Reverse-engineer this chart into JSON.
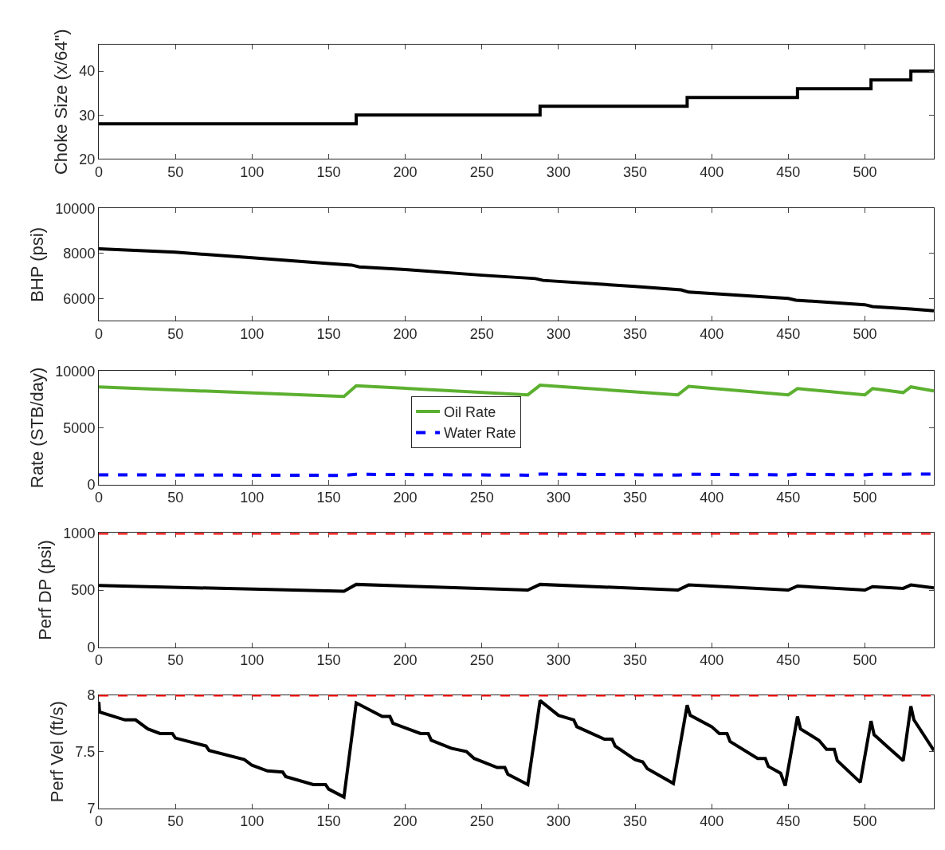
{
  "chart_data": [
    {
      "type": "step",
      "ylabel": "Choke Size (x/64\")",
      "xlim": [
        0,
        545
      ],
      "xticks": [
        0,
        50,
        100,
        150,
        200,
        250,
        300,
        350,
        400,
        450,
        500
      ],
      "ylim": [
        20,
        46
      ],
      "yticks": [
        20,
        30,
        40
      ],
      "series": [
        {
          "color": "#000000",
          "x": [
            0,
            168,
            288,
            384,
            456,
            504,
            530,
            545
          ],
          "values": [
            28,
            30,
            32,
            34,
            36,
            38,
            40,
            40
          ]
        }
      ]
    },
    {
      "type": "line",
      "ylabel": "BHP (psi)",
      "xlim": [
        0,
        545
      ],
      "xticks": [
        0,
        50,
        100,
        150,
        200,
        250,
        300,
        350,
        400,
        450,
        500
      ],
      "ylim": [
        5000,
        10000
      ],
      "yticks": [
        6000,
        8000,
        10000
      ],
      "series": [
        {
          "color": "#000000",
          "x": [
            0,
            50,
            100,
            150,
            165,
            170,
            200,
            250,
            285,
            290,
            350,
            380,
            385,
            450,
            455,
            500,
            505,
            530,
            545
          ],
          "values": [
            8200,
            8050,
            7800,
            7550,
            7480,
            7400,
            7280,
            7030,
            6880,
            6800,
            6530,
            6380,
            6280,
            6000,
            5920,
            5720,
            5640,
            5530,
            5450
          ]
        }
      ]
    },
    {
      "type": "line",
      "ylabel": "Rate (STB/day)",
      "xlim": [
        0,
        545
      ],
      "xticks": [
        0,
        50,
        100,
        150,
        200,
        250,
        300,
        350,
        400,
        450,
        500
      ],
      "ylim": [
        0,
        10000
      ],
      "yticks": [
        0,
        5000,
        10000
      ],
      "legend": "center",
      "series": [
        {
          "name": "Oil Rate",
          "color": "#5cb030",
          "line_style": "solid",
          "x": [
            0,
            160,
            168,
            280,
            288,
            378,
            385,
            450,
            456,
            500,
            505,
            525,
            530,
            545
          ],
          "values": [
            8600,
            7750,
            8700,
            7900,
            8750,
            7900,
            8650,
            7900,
            8450,
            7900,
            8450,
            8100,
            8600,
            8250
          ]
        },
        {
          "name": "Water Rate",
          "color": "#0000ff",
          "line_style": "dashed",
          "x": [
            0,
            160,
            168,
            280,
            288,
            378,
            385,
            450,
            456,
            500,
            505,
            545
          ],
          "values": [
            850,
            800,
            900,
            820,
            920,
            830,
            900,
            850,
            900,
            850,
            900,
            920
          ]
        }
      ]
    },
    {
      "type": "line",
      "ylabel": "Perf DP (psi)",
      "xlim": [
        0,
        545
      ],
      "xticks": [
        0,
        50,
        100,
        150,
        200,
        250,
        300,
        350,
        400,
        450,
        500
      ],
      "ylim": [
        0,
        1000
      ],
      "yticks": [
        0,
        500,
        1000
      ],
      "ref_lines": [
        {
          "axis": "y",
          "value": 1000,
          "color": "#ff0000",
          "line_style": "dashed"
        }
      ],
      "series": [
        {
          "color": "#000000",
          "x": [
            0,
            160,
            168,
            280,
            288,
            378,
            385,
            450,
            456,
            500,
            505,
            525,
            530,
            545
          ],
          "values": [
            540,
            490,
            550,
            500,
            550,
            500,
            545,
            500,
            535,
            500,
            530,
            515,
            545,
            520
          ]
        }
      ]
    },
    {
      "type": "line",
      "ylabel": "Perf Vel (ft/s)",
      "xlim": [
        0,
        545
      ],
      "xticks": [
        0,
        50,
        100,
        150,
        200,
        250,
        300,
        350,
        400,
        450,
        500
      ],
      "ylim": [
        7,
        8
      ],
      "yticks": [
        7,
        7.5,
        8
      ],
      "ref_lines": [
        {
          "axis": "y",
          "value": 8,
          "color": "#ff0000",
          "line_style": "dashed"
        }
      ],
      "series": [
        {
          "color": "#000000",
          "x": [
            0,
            0.5,
            17,
            24,
            32,
            40,
            48,
            50,
            70,
            72,
            95,
            100,
            110,
            120,
            122,
            140,
            148,
            150,
            160,
            168,
            185,
            190,
            192,
            210,
            215,
            217,
            230,
            240,
            245,
            260,
            265,
            267,
            280,
            288,
            300,
            310,
            312,
            330,
            335,
            337,
            350,
            355,
            358,
            375,
            384,
            386,
            400,
            405,
            410,
            412,
            430,
            435,
            437,
            445,
            448,
            456,
            458,
            470,
            475,
            480,
            482,
            497,
            504,
            506,
            515,
            520,
            525,
            530,
            532,
            545
          ],
          "values": [
            7.94,
            7.85,
            7.78,
            7.78,
            7.7,
            7.66,
            7.66,
            7.62,
            7.55,
            7.51,
            7.43,
            7.38,
            7.33,
            7.32,
            7.28,
            7.21,
            7.21,
            7.17,
            7.1,
            7.93,
            7.81,
            7.81,
            7.75,
            7.66,
            7.66,
            7.6,
            7.53,
            7.5,
            7.44,
            7.36,
            7.36,
            7.3,
            7.21,
            7.95,
            7.82,
            7.78,
            7.72,
            7.61,
            7.61,
            7.55,
            7.43,
            7.41,
            7.35,
            7.22,
            7.91,
            7.82,
            7.72,
            7.66,
            7.66,
            7.59,
            7.44,
            7.44,
            7.37,
            7.31,
            7.2,
            7.81,
            7.7,
            7.6,
            7.52,
            7.52,
            7.42,
            7.23,
            7.77,
            7.65,
            7.54,
            7.48,
            7.42,
            7.9,
            7.78,
            7.51
          ]
        }
      ]
    }
  ]
}
